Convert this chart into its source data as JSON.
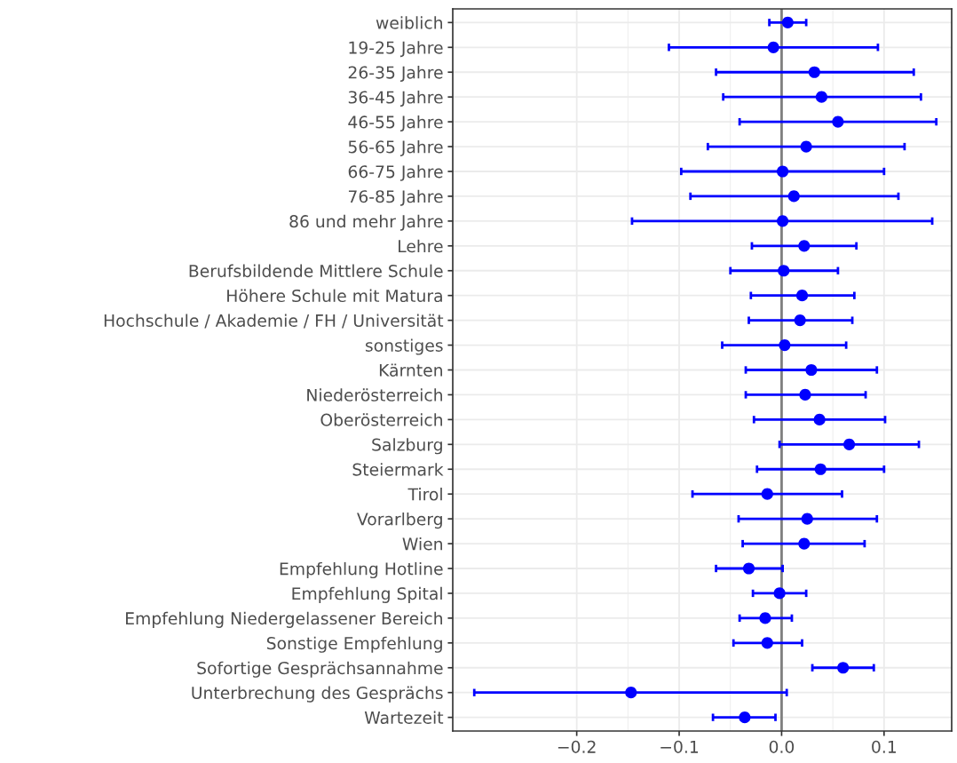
{
  "chart_data": {
    "type": "scatter",
    "orientation": "horizontal",
    "marker": "circle",
    "grid": true,
    "legend": false,
    "categories": [
      "weiblich",
      "19-25 Jahre",
      "26-35 Jahre",
      "36-45 Jahre",
      "46-55 Jahre",
      "56-65 Jahre",
      "66-75 Jahre",
      "76-85 Jahre",
      "86 und mehr Jahre",
      "Lehre",
      "Berufsbildende Mittlere Schule",
      "Höhere Schule mit Matura",
      "Hochschule / Akademie / FH / Universität",
      "sonstiges",
      "Kärnten",
      "Niederösterreich",
      "Oberösterreich",
      "Salzburg",
      "Steiermark",
      "Tirol",
      "Vorarlberg",
      "Wien",
      "Empfehlung Hotline",
      "Empfehlung Spital",
      "Empfehlung Niedergelassener Bereich",
      "Sonstige Empfehlung",
      "Sofortige Gesprächsannahme",
      "Unterbrechung des Gesprächs",
      "Wartezeit"
    ],
    "series": [
      {
        "color": "#0000ff",
        "values": [
          0.006,
          -0.008,
          0.032,
          0.039,
          0.055,
          0.024,
          0.001,
          0.012,
          0.001,
          0.022,
          0.002,
          0.02,
          0.018,
          0.003,
          0.029,
          0.023,
          0.037,
          0.066,
          0.038,
          -0.014,
          0.025,
          0.022,
          -0.032,
          -0.002,
          -0.016,
          -0.014,
          0.06,
          -0.147,
          -0.036
        ],
        "errors": [
          [
            -0.012,
            0.024
          ],
          [
            -0.11,
            0.094
          ],
          [
            -0.064,
            0.129
          ],
          [
            -0.057,
            0.136
          ],
          [
            -0.041,
            0.151
          ],
          [
            -0.072,
            0.12
          ],
          [
            -0.098,
            0.1
          ],
          [
            -0.089,
            0.114
          ],
          [
            -0.146,
            0.147
          ],
          [
            -0.029,
            0.073
          ],
          [
            -0.05,
            0.055
          ],
          [
            -0.03,
            0.071
          ],
          [
            -0.032,
            0.069
          ],
          [
            -0.058,
            0.063
          ],
          [
            -0.035,
            0.093
          ],
          [
            -0.035,
            0.082
          ],
          [
            -0.027,
            0.101
          ],
          [
            -0.002,
            0.134
          ],
          [
            -0.024,
            0.1
          ],
          [
            -0.087,
            0.059
          ],
          [
            -0.042,
            0.093
          ],
          [
            -0.038,
            0.081
          ],
          [
            -0.064,
            0.001
          ],
          [
            -0.028,
            0.024
          ],
          [
            -0.041,
            0.01
          ],
          [
            -0.047,
            0.02
          ],
          [
            0.03,
            0.09
          ],
          [
            -0.3,
            0.005
          ],
          [
            -0.067,
            -0.006
          ]
        ]
      }
    ],
    "xlim": [
      -0.321,
      0.166
    ],
    "xticks": [
      {
        "value": -0.2,
        "label": "−0.2"
      },
      {
        "value": -0.1,
        "label": "−0.1"
      },
      {
        "value": 0.0,
        "label": "0.0"
      },
      {
        "value": 0.1,
        "label": "0.1"
      }
    ],
    "ref_lines": [
      {
        "axis": "x",
        "value": 0,
        "color": "#7f7f7f"
      }
    ]
  }
}
